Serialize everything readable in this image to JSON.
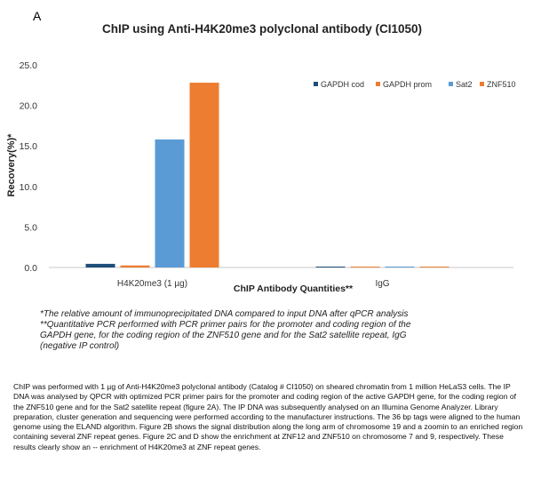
{
  "panel_letter": "A",
  "footnote": [
    "*The relative amount of immunoprecipitated DNA compared to input DNA after qPCR analysis",
    "**Quantitative PCR performed with PCR primer pairs for the promoter and coding region of the",
    "GAPDH gene, for the coding region of the ZNF510 gene and for the Sat2 satellite repeat, IgG",
    "(negative IP control)"
  ],
  "description": "ChIP was performed with 1 µg of Anti-H4K20me3 polyclonal antibody (Catalog # CI1050) on sheared chromatin from 1 million HeLaS3 cells. The IP DNA was analysed by QPCR with optimized PCR primer pairs for the promoter and coding region of the active GAPDH gene, for the coding region of the ZNF510 gene and for the Sat2 satellite repeat (figure 2A). The IP DNA was subsequently analysed on an Illumina Genome Analyzer. Library preparation, cluster generation and sequencing were performed according to the manufacturer instructions. The 36 bp tags were aligned to the human genome using the ELAND algorithm. Figure 2B shows the signal distribution along the long arm of chromosome 19 and a zoomin to an enriched region containing several ZNF repeat genes. Figure 2C and D show the enrichment at ZNF12 and ZNF510 on chromosome 7 and 9, respectively. These results clearly show an -- enrichment of H4K20me3 at ZNF repeat genes.",
  "chart_data": {
    "type": "bar",
    "title": "ChIP using Anti-H4K20me3 polyclonal antibody (CI1050)",
    "xlabel": "ChIP Antibody Quantities**",
    "ylabel": "Recovery(%)*",
    "ylim": [
      0,
      25
    ],
    "yticks": [
      "0.0",
      "5.0",
      "10.0",
      "15.0",
      "20.0",
      "25.0"
    ],
    "categories": [
      "H4K20me3 (1 µg)",
      "IgG"
    ],
    "legend_position": "top-right",
    "grid": false,
    "series": [
      {
        "name": "GAPDH cod",
        "color": "#1f4e79",
        "values": [
          0.45,
          0.1
        ]
      },
      {
        "name": "GAPDH prom",
        "color": "#ed7d31",
        "values": [
          0.25,
          0.05
        ]
      },
      {
        "name": "Sat2",
        "color": "#5b9bd5",
        "values": [
          15.8,
          0.08
        ]
      },
      {
        "name": "ZNF510",
        "color": "#ed7d31",
        "values": [
          22.8,
          0.05
        ]
      }
    ]
  }
}
